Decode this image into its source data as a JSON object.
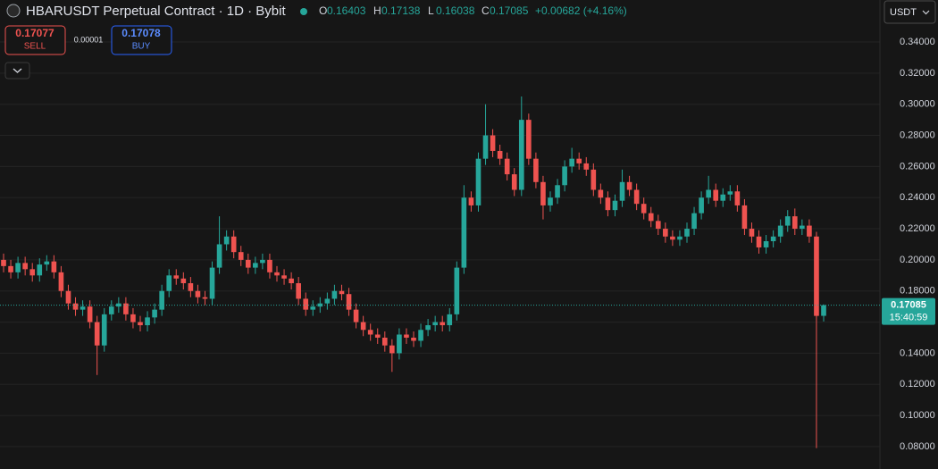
{
  "chart_data": {
    "type": "candlestick",
    "title": "HBARUSDT Perpetual Contract · 1D · Bybit",
    "ohlc_legend": [
      {
        "label": "O",
        "value": 0.16403
      },
      {
        "label": "H",
        "value": 0.17138
      },
      {
        "label": "L",
        "value": 0.16038
      },
      {
        "label": "C",
        "value": 0.17085
      }
    ],
    "change": "+0.00682 (+4.16%)",
    "sell": {
      "price": 0.17077,
      "label": "SELL"
    },
    "spread": 1e-05,
    "buy": {
      "price": 0.17078,
      "label": "BUY"
    },
    "currency": "USDT",
    "last_price": 0.17085,
    "countdown": "15:40:59",
    "up_color": "#26a69a",
    "down_color": "#ef5350",
    "grid": true,
    "ylim": [
      0.0656,
      0.367
    ],
    "yticks": [
      {
        "value": 0.08,
        "label": "0.08000"
      },
      {
        "value": 0.1,
        "label": "0.10000"
      },
      {
        "value": 0.12,
        "label": "0.12000"
      },
      {
        "value": 0.14,
        "label": "0.14000"
      },
      {
        "value": 0.16,
        "label": "0.16000"
      },
      {
        "value": 0.18,
        "label": "0.18000"
      },
      {
        "value": 0.2,
        "label": "0.20000"
      },
      {
        "value": 0.22,
        "label": "0.22000"
      },
      {
        "value": 0.24,
        "label": "0.24000"
      },
      {
        "value": 0.26,
        "label": "0.26000"
      },
      {
        "value": 0.28,
        "label": "0.28000"
      },
      {
        "value": 0.3,
        "label": "0.30000"
      },
      {
        "value": 0.32,
        "label": "0.32000"
      },
      {
        "value": 0.34,
        "label": "0.34000"
      }
    ],
    "open": [
      0.2,
      0.196,
      0.192,
      0.198,
      0.194,
      0.19,
      0.197,
      0.199,
      0.192,
      0.18,
      0.172,
      0.168,
      0.17,
      0.16,
      0.145,
      0.165,
      0.17,
      0.172,
      0.165,
      0.16,
      0.158,
      0.163,
      0.168,
      0.18,
      0.19,
      0.188,
      0.185,
      0.18,
      0.176,
      0.175,
      0.195,
      0.21,
      0.215,
      0.205,
      0.2,
      0.195,
      0.198,
      0.2,
      0.192,
      0.19,
      0.188,
      0.185,
      0.175,
      0.168,
      0.17,
      0.172,
      0.175,
      0.18,
      0.178,
      0.168,
      0.16,
      0.155,
      0.152,
      0.15,
      0.145,
      0.14,
      0.152,
      0.15,
      0.148,
      0.155,
      0.158,
      0.16,
      0.158,
      0.165,
      0.195,
      0.24,
      0.235,
      0.265,
      0.28,
      0.27,
      0.265,
      0.255,
      0.245,
      0.29,
      0.265,
      0.25,
      0.235,
      0.24,
      0.248,
      0.26,
      0.265,
      0.262,
      0.258,
      0.245,
      0.24,
      0.232,
      0.238,
      0.25,
      0.245,
      0.236,
      0.23,
      0.225,
      0.22,
      0.215,
      0.213,
      0.215,
      0.22,
      0.23,
      0.24,
      0.245,
      0.238,
      0.242,
      0.244,
      0.235,
      0.22,
      0.215,
      0.208,
      0.212,
      0.215,
      0.222,
      0.228,
      0.22,
      0.222,
      0.215,
      0.16403
    ],
    "high": [
      0.204,
      0.2,
      0.202,
      0.202,
      0.198,
      0.201,
      0.203,
      0.203,
      0.196,
      0.184,
      0.176,
      0.174,
      0.174,
      0.164,
      0.169,
      0.174,
      0.176,
      0.176,
      0.169,
      0.164,
      0.167,
      0.172,
      0.184,
      0.194,
      0.194,
      0.192,
      0.189,
      0.184,
      0.18,
      0.199,
      0.228,
      0.219,
      0.219,
      0.209,
      0.204,
      0.202,
      0.204,
      0.204,
      0.196,
      0.194,
      0.192,
      0.189,
      0.179,
      0.174,
      0.176,
      0.179,
      0.184,
      0.184,
      0.182,
      0.172,
      0.164,
      0.159,
      0.156,
      0.154,
      0.149,
      0.156,
      0.156,
      0.154,
      0.159,
      0.162,
      0.164,
      0.164,
      0.169,
      0.199,
      0.248,
      0.244,
      0.269,
      0.3,
      0.284,
      0.274,
      0.269,
      0.259,
      0.305,
      0.294,
      0.269,
      0.254,
      0.244,
      0.252,
      0.264,
      0.272,
      0.269,
      0.266,
      0.262,
      0.249,
      0.244,
      0.242,
      0.258,
      0.254,
      0.249,
      0.24,
      0.234,
      0.229,
      0.224,
      0.219,
      0.219,
      0.224,
      0.234,
      0.244,
      0.254,
      0.249,
      0.246,
      0.248,
      0.248,
      0.239,
      0.224,
      0.219,
      0.216,
      0.219,
      0.226,
      0.232,
      0.233,
      0.226,
      0.226,
      0.218,
      0.17138
    ],
    "low": [
      0.192,
      0.188,
      0.188,
      0.19,
      0.186,
      0.186,
      0.193,
      0.188,
      0.176,
      0.168,
      0.164,
      0.164,
      0.156,
      0.126,
      0.141,
      0.161,
      0.166,
      0.161,
      0.156,
      0.154,
      0.154,
      0.159,
      0.164,
      0.176,
      0.184,
      0.181,
      0.176,
      0.172,
      0.171,
      0.171,
      0.191,
      0.206,
      0.201,
      0.196,
      0.191,
      0.191,
      0.194,
      0.188,
      0.186,
      0.184,
      0.181,
      0.171,
      0.164,
      0.164,
      0.166,
      0.168,
      0.171,
      0.174,
      0.164,
      0.156,
      0.151,
      0.148,
      0.146,
      0.141,
      0.128,
      0.136,
      0.146,
      0.144,
      0.144,
      0.151,
      0.154,
      0.154,
      0.154,
      0.161,
      0.191,
      0.231,
      0.231,
      0.261,
      0.266,
      0.261,
      0.251,
      0.241,
      0.241,
      0.261,
      0.246,
      0.226,
      0.231,
      0.236,
      0.244,
      0.256,
      0.258,
      0.254,
      0.241,
      0.236,
      0.228,
      0.228,
      0.234,
      0.241,
      0.232,
      0.226,
      0.221,
      0.216,
      0.211,
      0.209,
      0.209,
      0.211,
      0.216,
      0.226,
      0.236,
      0.234,
      0.234,
      0.238,
      0.231,
      0.216,
      0.211,
      0.204,
      0.204,
      0.208,
      0.211,
      0.218,
      0.216,
      0.216,
      0.211,
      0.079,
      0.16038
    ],
    "close": [
      0.196,
      0.192,
      0.198,
      0.194,
      0.19,
      0.197,
      0.199,
      0.192,
      0.18,
      0.172,
      0.168,
      0.17,
      0.16,
      0.145,
      0.165,
      0.17,
      0.172,
      0.165,
      0.16,
      0.158,
      0.163,
      0.168,
      0.18,
      0.19,
      0.188,
      0.185,
      0.18,
      0.176,
      0.175,
      0.195,
      0.21,
      0.215,
      0.205,
      0.2,
      0.195,
      0.198,
      0.2,
      0.192,
      0.19,
      0.188,
      0.185,
      0.175,
      0.168,
      0.17,
      0.172,
      0.175,
      0.18,
      0.178,
      0.168,
      0.16,
      0.155,
      0.152,
      0.15,
      0.145,
      0.14,
      0.152,
      0.15,
      0.148,
      0.155,
      0.158,
      0.16,
      0.158,
      0.165,
      0.195,
      0.24,
      0.235,
      0.265,
      0.28,
      0.27,
      0.265,
      0.255,
      0.245,
      0.29,
      0.265,
      0.25,
      0.235,
      0.24,
      0.248,
      0.26,
      0.265,
      0.262,
      0.258,
      0.245,
      0.24,
      0.232,
      0.238,
      0.25,
      0.245,
      0.236,
      0.23,
      0.225,
      0.22,
      0.215,
      0.213,
      0.215,
      0.22,
      0.23,
      0.24,
      0.245,
      0.238,
      0.242,
      0.244,
      0.235,
      0.22,
      0.215,
      0.208,
      0.212,
      0.215,
      0.222,
      0.228,
      0.22,
      0.222,
      0.215,
      0.164,
      0.17085
    ]
  }
}
